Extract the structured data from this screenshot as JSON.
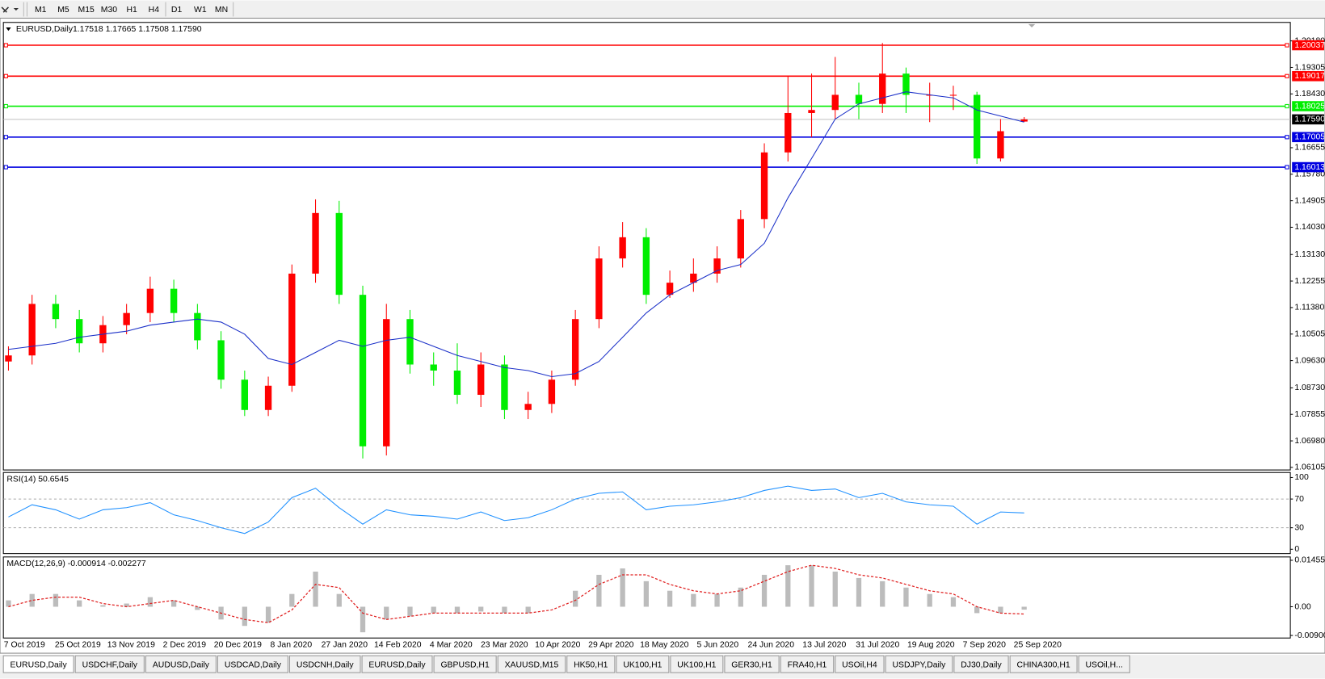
{
  "toolbar": {
    "timeframes": [
      "M1",
      "M5",
      "M15",
      "M30",
      "H1",
      "H4",
      "D1",
      "W1",
      "MN"
    ]
  },
  "chart_data": [
    {
      "type": "candlestick",
      "title": "EURUSD,Daily",
      "quote": "1.17518 1.17665 1.17508 1.17590",
      "x_tick_labels": [
        "7 Oct 2019",
        "25 Oct 2019",
        "13 Nov 2019",
        "2 Dec 2019",
        "20 Dec 2019",
        "8 Jan 2020",
        "27 Jan 2020",
        "14 Feb 2020",
        "4 Mar 2020",
        "23 Mar 2020",
        "10 Apr 2020",
        "29 Apr 2020",
        "18 May 2020",
        "5 Jun 2020",
        "24 Jun 2020",
        "13 Jul 2020",
        "31 Jul 2020",
        "19 Aug 2020",
        "7 Sep 2020",
        "25 Sep 2020"
      ],
      "open": [
        1.096,
        1.098,
        1.115,
        1.11,
        1.102,
        1.108,
        1.112,
        1.12,
        1.112,
        1.103,
        1.09,
        1.08,
        1.088,
        1.125,
        1.145,
        1.118,
        1.068,
        1.11,
        1.095,
        1.093,
        1.085,
        1.095,
        1.08,
        1.082,
        1.09,
        1.11,
        1.13,
        1.137,
        1.118,
        1.122,
        1.125,
        1.13,
        1.143,
        1.165,
        1.178,
        1.179,
        1.184,
        1.181,
        1.191,
        1.184,
        1.184,
        1.184,
        1.163,
        1.17518
      ],
      "high": [
        1.101,
        1.118,
        1.118,
        1.113,
        1.111,
        1.115,
        1.124,
        1.123,
        1.115,
        1.106,
        1.093,
        1.091,
        1.128,
        1.1495,
        1.149,
        1.121,
        1.115,
        1.113,
        1.099,
        1.102,
        1.099,
        1.098,
        1.086,
        1.093,
        1.113,
        1.134,
        1.142,
        1.14,
        1.126,
        1.13,
        1.134,
        1.146,
        1.168,
        1.19,
        1.191,
        1.1965,
        1.188,
        1.2011,
        1.193,
        1.188,
        1.187,
        1.185,
        1.176,
        1.17665
      ],
      "low": [
        1.093,
        1.095,
        1.107,
        1.099,
        1.099,
        1.105,
        1.109,
        1.109,
        1.1,
        1.087,
        1.078,
        1.078,
        1.086,
        1.122,
        1.115,
        1.064,
        1.065,
        1.092,
        1.088,
        1.082,
        1.081,
        1.077,
        1.077,
        1.079,
        1.088,
        1.107,
        1.127,
        1.115,
        1.117,
        1.119,
        1.122,
        1.127,
        1.14,
        1.162,
        1.17,
        1.176,
        1.176,
        1.178,
        1.178,
        1.175,
        1.179,
        1.1612,
        1.162,
        1.17508
      ],
      "close": [
        1.098,
        1.115,
        1.11,
        1.102,
        1.108,
        1.112,
        1.12,
        1.112,
        1.103,
        1.09,
        1.08,
        1.088,
        1.125,
        1.145,
        1.118,
        1.068,
        1.11,
        1.095,
        1.093,
        1.085,
        1.095,
        1.08,
        1.082,
        1.09,
        1.11,
        1.13,
        1.137,
        1.118,
        1.122,
        1.125,
        1.13,
        1.143,
        1.165,
        1.178,
        1.179,
        1.184,
        1.181,
        1.191,
        1.184,
        1.184,
        1.184,
        1.163,
        1.172,
        1.1759
      ],
      "up_color": "#ff0000",
      "down_color": "#00ee00",
      "series": [
        {
          "color": "#1a2fc8",
          "values": [
            1.1,
            1.101,
            1.102,
            1.104,
            1.105,
            1.106,
            1.108,
            1.109,
            1.11,
            1.109,
            1.105,
            1.097,
            1.095,
            1.099,
            1.103,
            1.101,
            1.103,
            1.104,
            1.101,
            1.098,
            1.096,
            1.094,
            1.093,
            1.091,
            1.092,
            1.096,
            1.104,
            1.112,
            1.118,
            1.122,
            1.126,
            1.128,
            1.135,
            1.15,
            1.163,
            1.176,
            1.181,
            1.183,
            1.185,
            1.184,
            1.183,
            1.179,
            1.177,
            1.175
          ]
        }
      ],
      "ylim": [
        1.0602,
        1.2079
      ],
      "yticks": [
        1.06105,
        {
          "value": 1.0698,
          "label": "1.06980"
        },
        1.07855,
        {
          "value": 1.0873,
          "label": "1.08730"
        },
        {
          "value": 1.0963,
          "label": "1.09630"
        },
        1.10505,
        {
          "value": 1.1138,
          "label": "1.11380"
        },
        1.12255,
        {
          "value": 1.1313,
          "label": "1.13130"
        },
        {
          "value": 1.1403,
          "label": "1.14030"
        },
        1.14905,
        {
          "value": 1.1578,
          "label": "1.15780"
        },
        1.16655,
        {
          "value": 1.1843,
          "label": "1.18430"
        },
        1.19305,
        {
          "value": 1.2018,
          "label": "1.20180"
        }
      ],
      "levels": [
        {
          "value": 1.20037,
          "color": "#ff0000"
        },
        {
          "value": 1.19017,
          "color": "#ff0000"
        },
        {
          "value": 1.18025,
          "color": "#00ee00"
        },
        {
          "value": 1.17005,
          "color": "#0000e0"
        },
        {
          "value": 1.16013,
          "color": "#0000e0"
        }
      ],
      "current_price": {
        "value": 1.1759,
        "label": "1.17590"
      }
    },
    {
      "type": "line",
      "title": "RSI(14) 50.6545",
      "values": [
        45,
        62,
        55,
        42,
        55,
        58,
        65,
        48,
        40,
        30,
        22,
        38,
        72,
        85,
        58,
        35,
        55,
        48,
        46,
        42,
        52,
        40,
        44,
        55,
        70,
        78,
        80,
        55,
        60,
        62,
        66,
        72,
        82,
        88,
        82,
        84,
        72,
        78,
        66,
        62,
        60,
        35,
        52,
        50.65
      ],
      "color": "#1e90ff",
      "ylim": [
        -6,
        107
      ],
      "yticks": [
        100,
        70,
        30,
        0
      ],
      "levels": [
        70,
        30
      ]
    },
    {
      "type": "macd",
      "title": "MACD(12,26,9) -0.000914 -0.002277",
      "values": [
        0.002,
        0.004,
        0.004,
        0.002,
        0.0005,
        0.001,
        0.003,
        0.002,
        -0.001,
        -0.004,
        -0.006,
        -0.005,
        0.004,
        0.011,
        0.004,
        -0.008,
        -0.004,
        -0.003,
        -0.002,
        -0.002,
        -0.0015,
        -0.002,
        -0.002,
        0.0,
        0.005,
        0.01,
        0.012,
        0.008,
        0.005,
        0.004,
        0.004,
        0.006,
        0.01,
        0.013,
        0.013,
        0.011,
        0.009,
        0.008,
        0.006,
        0.004,
        0.003,
        -0.002,
        -0.002,
        -0.000914
      ],
      "signal": [
        0.0,
        0.002,
        0.003,
        0.003,
        0.001,
        0.0,
        0.001,
        0.002,
        0.0,
        -0.002,
        -0.004,
        -0.005,
        -0.001,
        0.007,
        0.006,
        -0.002,
        -0.004,
        -0.003,
        -0.002,
        -0.002,
        -0.002,
        -0.002,
        -0.002,
        -0.001,
        0.002,
        0.007,
        0.01,
        0.01,
        0.007,
        0.005,
        0.004,
        0.005,
        0.008,
        0.011,
        0.013,
        0.012,
        0.01,
        0.009,
        0.007,
        0.005,
        0.004,
        0.0,
        -0.002,
        -0.002277
      ],
      "color": "#a0a0a0",
      "signal_color": "#e02020",
      "ylim": [
        -0.0098,
        0.0156
      ],
      "yticks": [
        0.014556,
        {
          "value": 0,
          "label": "0.00"
        },
        -0.009001
      ]
    }
  ],
  "tabs": [
    "EURUSD,Daily",
    "USDCHF,Daily",
    "AUDUSD,Daily",
    "USDCAD,Daily",
    "USDCNH,Daily",
    "EURUSD,Daily",
    "GBPUSD,H1",
    "XAUUSD,M15",
    "HK50,H1",
    "UK100,H1",
    "UK100,H1",
    "GER30,H1",
    "FRA40,H1",
    "USOil,H4",
    "USDJPY,Daily",
    "DJ30,Daily",
    "CHINA300,H1",
    "USOil,H..."
  ]
}
